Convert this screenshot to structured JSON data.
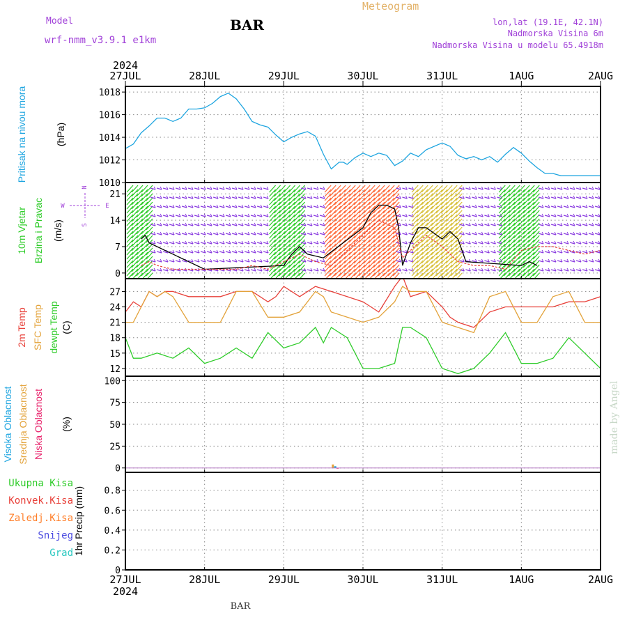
{
  "header": {
    "model_label": "Model",
    "model_value": "wrf-nmm_v3.9.1  e1km",
    "station": "BAR",
    "title": "Meteogram",
    "coords": "lon,lat (19.1E, 42.1N)",
    "elevation": "Nadmorska Visina 6m",
    "model_elevation": "Nadmorska Visina u modelu 65.4918m"
  },
  "footer": {
    "station": "BAR"
  },
  "watermark": "made by Angel",
  "colors": {
    "pressure": "#1ea5e0",
    "temp2m": "#e8413a",
    "sfc_temp": "#e3a33b",
    "dewpt": "#2fcc2a",
    "grid": "#999999",
    "purple_label": "#a040d8",
    "wind_max": "#000000",
    "wind_mean": "#e8413a"
  },
  "chart_data": [
    {
      "type": "line",
      "panel": "pressure",
      "ylabel_lines": [
        "Pritisak na nivou mora",
        "(hPa)"
      ],
      "ylabel_colors": [
        "#1ea5e0",
        "#000000"
      ],
      "ylim": [
        1010,
        1018.5
      ],
      "yticks": [
        1010,
        1012,
        1014,
        1016,
        1018
      ],
      "ytick_labels": [
        "1010",
        "1012",
        "1014",
        "1016",
        "1018"
      ],
      "xaxis": {
        "ticks": [
          0,
          1,
          2,
          3,
          4,
          5,
          6
        ],
        "tick_labels": [
          "27JUL",
          "28JUL",
          "29JUL",
          "30JUL",
          "31JUL",
          "1AUG",
          "2AUG"
        ],
        "year_label": "2024",
        "xlim": [
          0,
          6
        ]
      },
      "grid": true,
      "series": [
        {
          "color": "#1ea5e0",
          "x": [
            0,
            0.1,
            0.2,
            0.3,
            0.4,
            0.5,
            0.6,
            0.7,
            0.8,
            0.9,
            1.0,
            1.1,
            1.2,
            1.3,
            1.4,
            1.5,
            1.6,
            1.7,
            1.8,
            1.9,
            2.0,
            2.1,
            2.2,
            2.3,
            2.4,
            2.5,
            2.6,
            2.7,
            2.75,
            2.8,
            2.9,
            3.0,
            3.1,
            3.2,
            3.3,
            3.4,
            3.5,
            3.6,
            3.7,
            3.8,
            3.9,
            4.0,
            4.1,
            4.2,
            4.3,
            4.4,
            4.5,
            4.6,
            4.7,
            4.8,
            4.9,
            5.0,
            5.1,
            5.2,
            5.3,
            5.4,
            5.5,
            5.6,
            5.7,
            5.8,
            5.9,
            6.0
          ],
          "values": [
            1013.0,
            1013.4,
            1014.4,
            1015.0,
            1015.7,
            1015.7,
            1015.4,
            1015.7,
            1016.5,
            1016.5,
            1016.6,
            1017.0,
            1017.6,
            1017.9,
            1017.4,
            1016.5,
            1015.4,
            1015.1,
            1014.9,
            1014.2,
            1013.6,
            1014.0,
            1014.3,
            1014.5,
            1014.1,
            1012.5,
            1011.2,
            1011.8,
            1011.8,
            1011.6,
            1012.2,
            1012.6,
            1012.3,
            1012.6,
            1012.4,
            1011.5,
            1011.9,
            1012.6,
            1012.3,
            1012.9,
            1013.2,
            1013.5,
            1013.2,
            1012.4,
            1012.1,
            1012.3,
            1012.0,
            1012.3,
            1011.8,
            1012.5,
            1013.1,
            1012.6,
            1011.9,
            1011.3,
            1010.8,
            1010.8,
            1010.6,
            1010.6,
            1010.6,
            1010.6,
            1010.6,
            1010.6
          ]
        }
      ]
    },
    {
      "type": "line",
      "panel": "wind",
      "ylabel_lines": [
        "10m Vjetar",
        "Brzina i Pravac",
        "(m/s)"
      ],
      "ylabel_colors": [
        "#2fcc2a",
        "#2fcc2a",
        "#000000"
      ],
      "compass": {
        "n": "N",
        "s": "S",
        "w": "W",
        "e": "E"
      },
      "ylim": [
        -1.5,
        24
      ],
      "yticks": [
        0,
        7,
        14,
        21
      ],
      "ytick_labels": [
        "0",
        "7",
        "14",
        "21"
      ],
      "grid": true,
      "series": [
        {
          "name": "max",
          "color": "#000000",
          "x": [
            0.2,
            0.25,
            0.3,
            1.0,
            2.0,
            2.1,
            2.2,
            2.3,
            2.5,
            3.0,
            3.1,
            3.2,
            3.3,
            3.4,
            3.45,
            3.5,
            3.6,
            3.7,
            3.8,
            4.0,
            4.1,
            4.2,
            4.3,
            5.0,
            5.1,
            5.2
          ],
          "values": [
            9,
            10,
            8,
            1,
            2,
            5,
            7,
            5,
            4,
            12,
            16,
            18,
            18,
            17,
            12,
            2,
            8,
            12,
            12,
            9,
            11,
            9,
            3,
            2,
            3,
            2
          ]
        },
        {
          "name": "mean",
          "color": "#e8413a",
          "x": [
            0.2,
            0.3,
            0.4,
            0.6,
            0.8,
            1.0,
            1.2,
            1.4,
            1.6,
            1.8,
            2.0,
            2.2,
            2.4,
            2.6,
            3.0,
            3.2,
            3.4,
            3.5,
            3.6,
            3.8,
            4.0,
            4.2,
            4.4,
            4.6,
            4.8,
            5.0,
            5.2,
            5.4,
            5.6,
            5.8,
            6.0
          ],
          "values": [
            2,
            3,
            2,
            1,
            1,
            1,
            1,
            1,
            2,
            1,
            3,
            5,
            3,
            2,
            10,
            14,
            12,
            4,
            6,
            10,
            7,
            3,
            2,
            2,
            1,
            6,
            7,
            7,
            6,
            5,
            6
          ]
        }
      ],
      "barb_bands": [
        {
          "x0": 0.0,
          "x1": 0.3,
          "color": "#2fcc2a"
        },
        {
          "x0": 0.3,
          "x1": 1.8,
          "color": "#8a3ce0"
        },
        {
          "x0": 1.8,
          "x1": 2.2,
          "color": "#2fcc2a"
        },
        {
          "x0": 2.2,
          "x1": 2.5,
          "color": "#8a3ce0"
        },
        {
          "x0": 2.5,
          "x1": 3.4,
          "color": "#ff6a3a"
        },
        {
          "x0": 3.4,
          "x1": 3.6,
          "color": "#8a3ce0"
        },
        {
          "x0": 3.6,
          "x1": 4.2,
          "color": "#d8c03a"
        },
        {
          "x0": 4.2,
          "x1": 4.7,
          "color": "#8a3ce0"
        },
        {
          "x0": 4.7,
          "x1": 5.2,
          "color": "#2fcc2a"
        },
        {
          "x0": 5.2,
          "x1": 6.0,
          "color": "#8a3ce0"
        }
      ]
    },
    {
      "type": "line",
      "panel": "temperature",
      "ylabel_lines": [
        "2m Temp",
        "SFC Temp",
        "dewpt Temp",
        "(C)"
      ],
      "ylabel_colors": [
        "#e8413a",
        "#e3a33b",
        "#2fcc2a",
        "#000000"
      ],
      "ylim": [
        10.5,
        29.5
      ],
      "yticks": [
        12,
        15,
        18,
        21,
        24,
        27
      ],
      "ytick_labels": [
        "12",
        "15",
        "18",
        "21",
        "24",
        "27"
      ],
      "grid": true,
      "series": [
        {
          "name": "2m Temp",
          "color": "#e8413a",
          "x": [
            0,
            0.1,
            0.2,
            0.3,
            0.4,
            0.5,
            0.6,
            0.8,
            1.0,
            1.2,
            1.4,
            1.6,
            1.8,
            1.9,
            2.0,
            2.2,
            2.4,
            2.6,
            2.8,
            3.0,
            3.1,
            3.2,
            3.4,
            3.5,
            3.6,
            3.8,
            4.0,
            4.1,
            4.2,
            4.4,
            4.6,
            4.8,
            5.0,
            5.2,
            5.4,
            5.6,
            5.8,
            6.0
          ],
          "values": [
            23,
            25,
            24,
            27,
            26,
            27,
            27,
            26,
            26,
            26,
            27,
            27,
            25,
            26,
            28,
            26,
            28,
            27,
            26,
            25,
            24,
            23,
            28,
            30,
            26,
            27,
            24,
            22,
            21,
            20,
            23,
            24,
            24,
            24,
            24,
            25,
            25,
            26
          ]
        },
        {
          "name": "SFC Temp",
          "color": "#e3a33b",
          "x": [
            0,
            0.1,
            0.2,
            0.3,
            0.4,
            0.5,
            0.6,
            0.8,
            1.0,
            1.2,
            1.4,
            1.6,
            1.8,
            2.0,
            2.2,
            2.4,
            2.5,
            2.6,
            2.8,
            3.0,
            3.2,
            3.4,
            3.5,
            3.6,
            3.8,
            4.0,
            4.2,
            4.4,
            4.6,
            4.8,
            5.0,
            5.2,
            5.4,
            5.6,
            5.8,
            6.0
          ],
          "values": [
            21,
            21,
            24,
            27,
            26,
            27,
            26,
            21,
            21,
            21,
            27,
            27,
            22,
            22,
            23,
            27,
            26,
            23,
            22,
            21,
            22,
            25,
            28,
            27,
            27,
            21,
            20,
            19,
            26,
            27,
            21,
            21,
            26,
            27,
            21,
            21
          ]
        },
        {
          "name": "dewpt Temp",
          "color": "#2fcc2a",
          "x": [
            0,
            0.1,
            0.2,
            0.4,
            0.6,
            0.8,
            1.0,
            1.2,
            1.4,
            1.6,
            1.8,
            2.0,
            2.2,
            2.4,
            2.5,
            2.6,
            2.8,
            3.0,
            3.2,
            3.4,
            3.5,
            3.6,
            3.8,
            4.0,
            4.2,
            4.4,
            4.6,
            4.8,
            5.0,
            5.2,
            5.4,
            5.6,
            5.8,
            6.0
          ],
          "values": [
            18,
            14,
            14,
            15,
            14,
            16,
            13,
            14,
            16,
            14,
            19,
            16,
            17,
            20,
            17,
            20,
            18,
            12,
            12,
            13,
            20,
            20,
            18,
            12,
            11,
            12,
            15,
            19,
            13,
            13,
            14,
            18,
            15,
            12
          ]
        }
      ]
    },
    {
      "type": "bar",
      "panel": "cloud",
      "ylabel_lines": [
        "Visoka Oblacnost",
        "Srednja Oblacnost",
        "Niska Oblacnost",
        "(%)"
      ],
      "ylabel_colors": [
        "#1ea5e0",
        "#e3a33b",
        "#e8246c",
        "#000000"
      ],
      "ylim": [
        -5,
        105
      ],
      "yticks": [
        0,
        25,
        50,
        75,
        100
      ],
      "ytick_labels": [
        "0",
        "25",
        "50",
        "75",
        "100"
      ],
      "grid": true,
      "series": [
        {
          "name": "Visoka Oblacnost",
          "color": "#1ea5e0",
          "x": [
            2.65
          ],
          "values": [
            2
          ]
        },
        {
          "name": "Srednja Oblacnost",
          "color": "#e3a33b",
          "x": [
            2.62
          ],
          "values": [
            4
          ]
        },
        {
          "name": "Niska Oblacnost",
          "color": "#e8246c",
          "x": [
            2.68
          ],
          "values": [
            0
          ]
        }
      ]
    },
    {
      "type": "bar",
      "panel": "precip",
      "ylabel_lines": [
        "1hr Precip (mm)"
      ],
      "ylabel_colors": [
        "#000000"
      ],
      "legend": [
        {
          "label": "Ukupna Kisa",
          "color": "#2fcc2a"
        },
        {
          "label": "Konvek.Kisa",
          "color": "#e8413a"
        },
        {
          "label": "Zaledj.Kisa",
          "color": "#ff7f2a"
        },
        {
          "label": "Snijeg",
          "color": "#4a4ae0"
        },
        {
          "label": "Grad",
          "color": "#2ac8c0"
        }
      ],
      "ylim": [
        0,
        0.98
      ],
      "yticks": [
        0,
        0.2,
        0.4,
        0.6,
        0.8
      ],
      "ytick_labels": [
        "0",
        "0.2",
        "0.4",
        "0.6",
        "0.8"
      ],
      "grid": true,
      "series": []
    }
  ]
}
